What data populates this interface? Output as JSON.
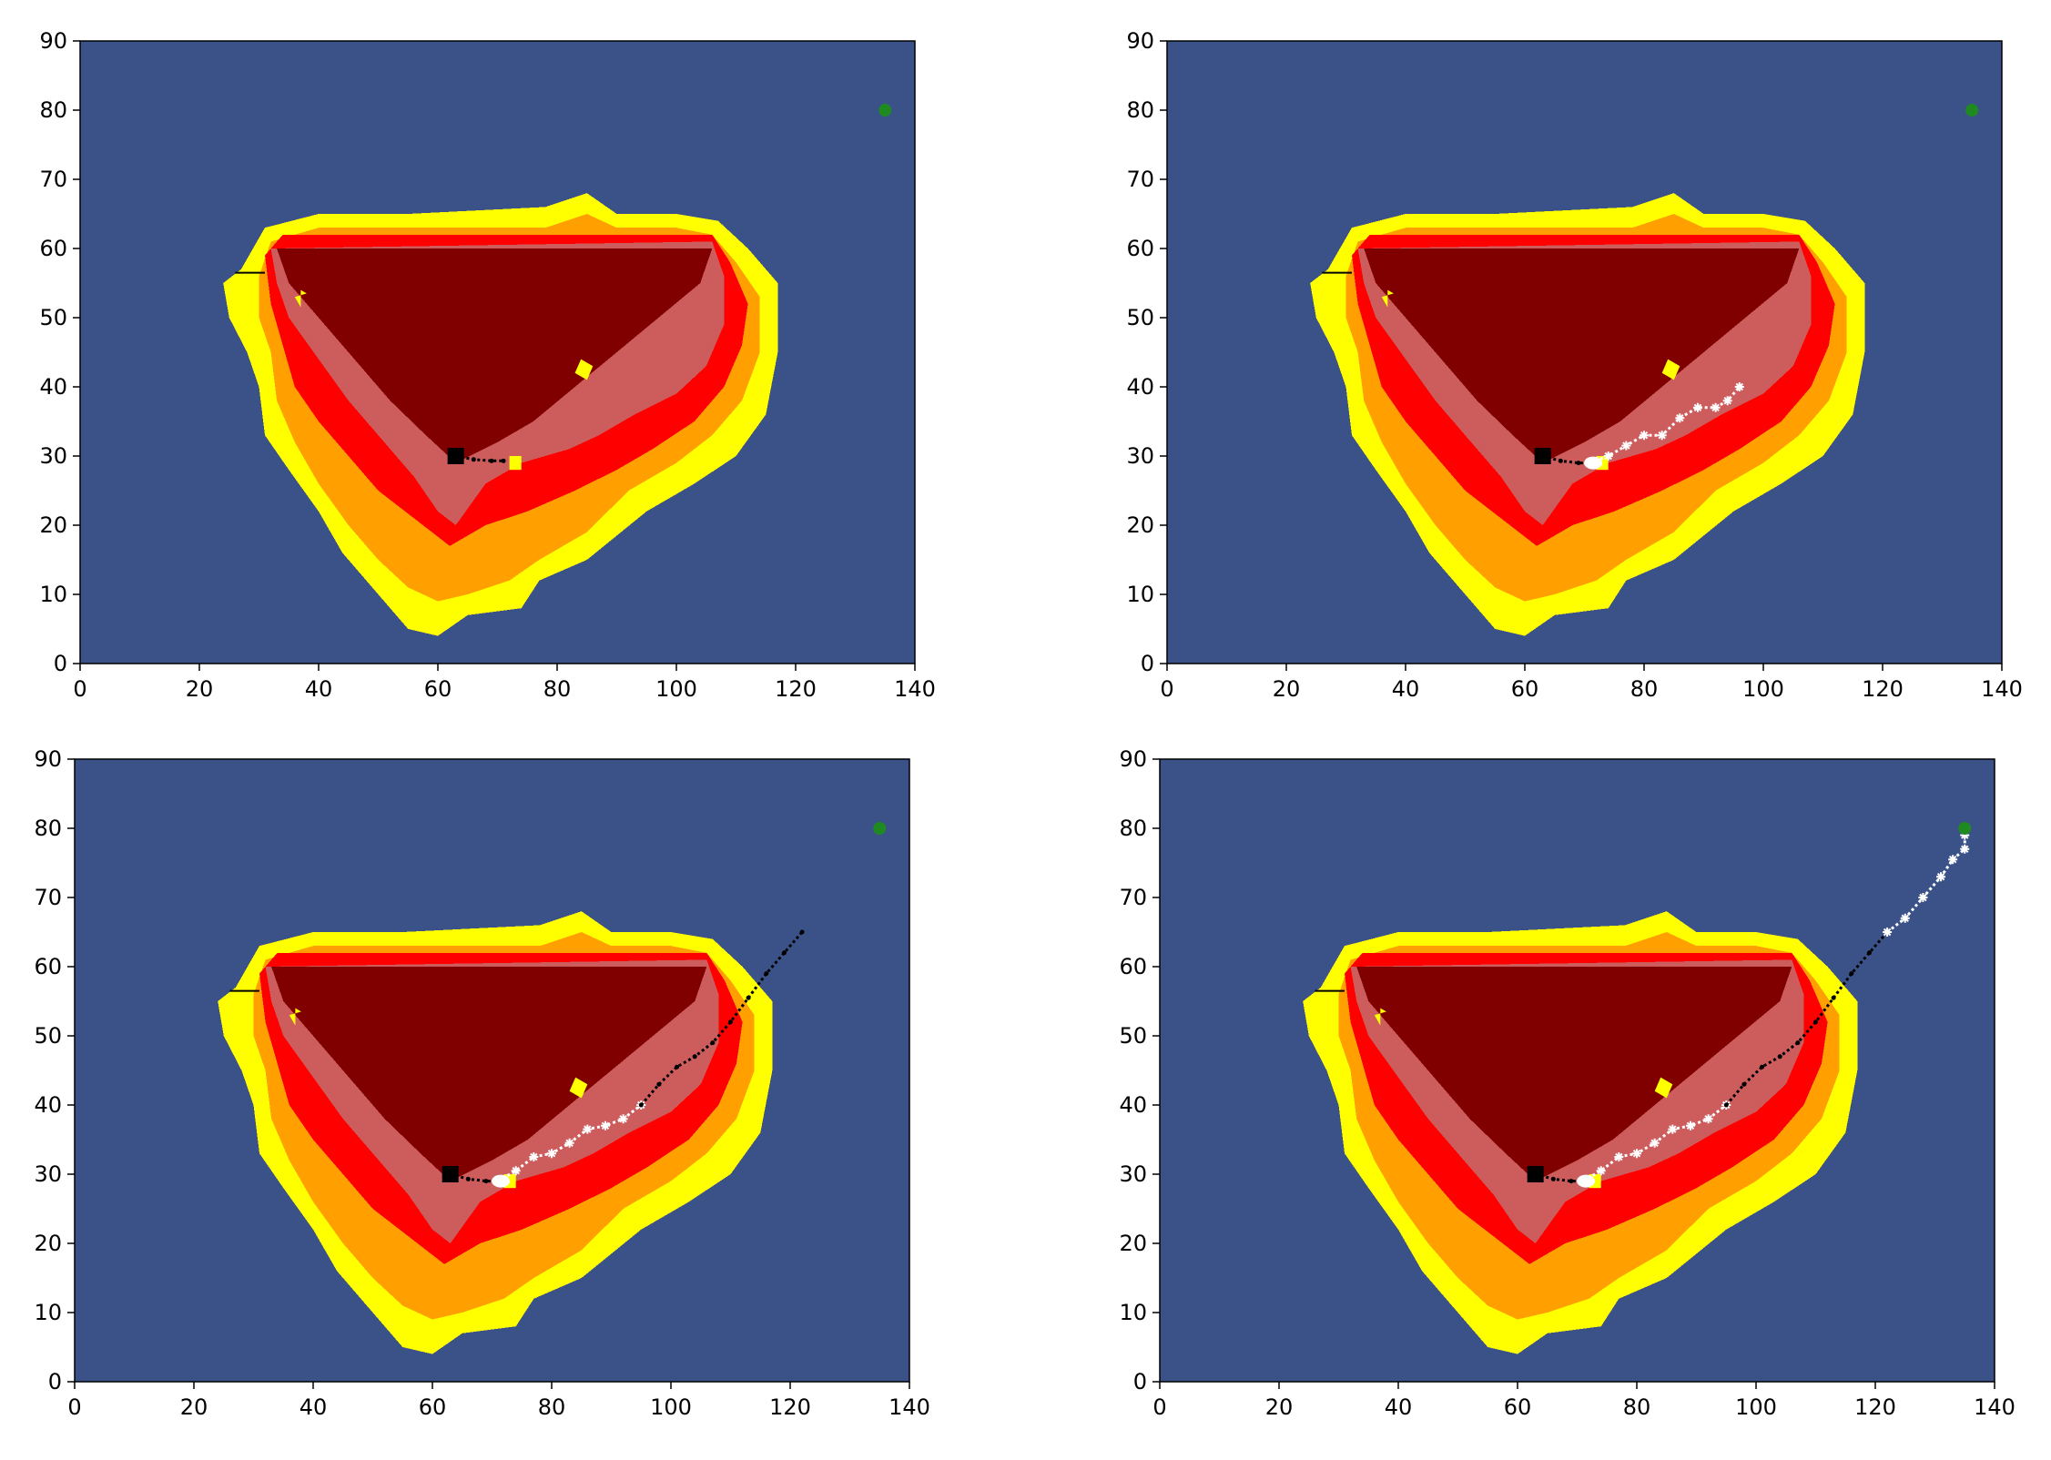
{
  "colors": {
    "background": "#3b5289",
    "zone_yellow": "#ffff00",
    "zone_orange": "#ffa000",
    "zone_red": "#ff0000",
    "zone_rose": "#cd5c5c",
    "zone_maroon": "#800000",
    "path_done": "#000000",
    "path_planned": "#ffffff",
    "start_marker": "#000000",
    "goal_marker": "#1f8a1f",
    "stroke": "#000000"
  },
  "chart_data": [
    {
      "type": "heatmap",
      "panel": "top-left",
      "title": "",
      "xlabel": "",
      "ylabel": "",
      "xlim": [
        0,
        140
      ],
      "ylim": [
        0,
        90
      ],
      "xticks": [
        0,
        20,
        40,
        60,
        80,
        100,
        120,
        140
      ],
      "yticks": [
        0,
        10,
        20,
        30,
        40,
        50,
        60,
        70,
        80,
        90
      ],
      "grid": false,
      "start": [
        63,
        30
      ],
      "goal": [
        135,
        80
      ],
      "traversed_path": [
        [
          63,
          30
        ],
        [
          66,
          29.5
        ],
        [
          69,
          29.3
        ],
        [
          71,
          29.3
        ]
      ],
      "planned_path": []
    },
    {
      "type": "heatmap",
      "panel": "top-right",
      "title": "",
      "xlabel": "",
      "ylabel": "",
      "xlim": [
        0,
        140
      ],
      "ylim": [
        0,
        90
      ],
      "xticks": [
        0,
        20,
        40,
        60,
        80,
        100,
        120,
        140
      ],
      "yticks": [
        0,
        10,
        20,
        30,
        40,
        50,
        60,
        70,
        80,
        90
      ],
      "grid": false,
      "start": [
        63,
        30
      ],
      "goal": [
        135,
        80
      ],
      "traversed_path": [
        [
          63,
          30
        ],
        [
          66,
          29.3
        ],
        [
          69,
          29
        ],
        [
          71,
          29
        ]
      ],
      "planned_path": [
        [
          71,
          29
        ],
        [
          74,
          30
        ],
        [
          77,
          31.5
        ],
        [
          80,
          33
        ],
        [
          83,
          33
        ],
        [
          86,
          35.5
        ],
        [
          89,
          37
        ],
        [
          92,
          37
        ],
        [
          94,
          38
        ],
        [
          96,
          40
        ]
      ]
    },
    {
      "type": "heatmap",
      "panel": "bottom-left",
      "title": "",
      "xlabel": "",
      "ylabel": "",
      "xlim": [
        0,
        140
      ],
      "ylim": [
        0,
        90
      ],
      "xticks": [
        0,
        20,
        40,
        60,
        80,
        100,
        120,
        140
      ],
      "yticks": [
        0,
        10,
        20,
        30,
        40,
        50,
        60,
        70,
        80,
        90
      ],
      "grid": false,
      "start": [
        63,
        30
      ],
      "goal": [
        135,
        80
      ],
      "traversed_path": [
        [
          63,
          30
        ],
        [
          66,
          29.3
        ],
        [
          69,
          29
        ],
        [
          71,
          29
        ]
      ],
      "planned_path": [
        [
          71,
          29
        ],
        [
          74,
          30.5
        ],
        [
          77,
          32.5
        ],
        [
          80,
          33
        ],
        [
          83,
          34.5
        ],
        [
          86,
          36.5
        ],
        [
          89,
          37
        ],
        [
          92,
          38
        ],
        [
          95,
          40
        ]
      ],
      "projected_path": [
        [
          95,
          40
        ],
        [
          98,
          43
        ],
        [
          101,
          45.5
        ],
        [
          104,
          47
        ],
        [
          107,
          49
        ],
        [
          110,
          52
        ],
        [
          113,
          55.5
        ],
        [
          116,
          59
        ],
        [
          119,
          62
        ],
        [
          122,
          65
        ]
      ]
    },
    {
      "type": "heatmap",
      "panel": "bottom-right",
      "title": "",
      "xlabel": "",
      "ylabel": "",
      "xlim": [
        0,
        140
      ],
      "ylim": [
        0,
        90
      ],
      "xticks": [
        0,
        20,
        40,
        60,
        80,
        100,
        120,
        140
      ],
      "yticks": [
        0,
        10,
        20,
        30,
        40,
        50,
        60,
        70,
        80,
        90
      ],
      "grid": false,
      "start": [
        63,
        30
      ],
      "goal": [
        135,
        80
      ],
      "traversed_path": [
        [
          63,
          30
        ],
        [
          66,
          29.3
        ],
        [
          69,
          29
        ],
        [
          71,
          29
        ]
      ],
      "planned_path": [
        [
          71,
          29
        ],
        [
          74,
          30.5
        ],
        [
          77,
          32.5
        ],
        [
          80,
          33
        ],
        [
          83,
          34.5
        ],
        [
          86,
          36.5
        ],
        [
          89,
          37
        ],
        [
          92,
          38
        ],
        [
          95,
          40
        ]
      ],
      "projected_path": [
        [
          95,
          40
        ],
        [
          98,
          43
        ],
        [
          101,
          45.5
        ],
        [
          104,
          47
        ],
        [
          107,
          49
        ],
        [
          110,
          52
        ],
        [
          113,
          55.5
        ],
        [
          116,
          59
        ],
        [
          119,
          62
        ],
        [
          122,
          65
        ]
      ],
      "final_path": [
        [
          122,
          65
        ],
        [
          125,
          67
        ],
        [
          128,
          70
        ],
        [
          131,
          73
        ],
        [
          133,
          75.5
        ],
        [
          135,
          77
        ],
        [
          135,
          79
        ]
      ]
    }
  ],
  "hazard_zones": [
    {
      "name": "yellow",
      "points": [
        [
          27,
          57
        ],
        [
          31,
          63
        ],
        [
          40,
          65
        ],
        [
          55,
          65
        ],
        [
          78,
          66
        ],
        [
          85,
          68
        ],
        [
          90,
          65
        ],
        [
          100,
          65
        ],
        [
          107,
          64
        ],
        [
          112,
          60
        ],
        [
          117,
          55
        ],
        [
          117,
          45
        ],
        [
          115,
          36
        ],
        [
          110,
          30
        ],
        [
          103,
          26
        ],
        [
          95,
          22
        ],
        [
          85,
          15
        ],
        [
          77,
          12
        ],
        [
          74,
          8
        ],
        [
          65,
          7
        ],
        [
          60,
          4
        ],
        [
          55,
          5
        ],
        [
          50,
          10
        ],
        [
          44,
          16
        ],
        [
          40,
          22
        ],
        [
          35,
          28
        ],
        [
          31,
          33
        ],
        [
          30,
          40
        ],
        [
          28,
          45
        ],
        [
          25,
          50
        ],
        [
          24,
          55
        ]
      ]
    },
    {
      "name": "orange",
      "points": [
        [
          30,
          56
        ],
        [
          32,
          61
        ],
        [
          40,
          63
        ],
        [
          55,
          63
        ],
        [
          78,
          63
        ],
        [
          85,
          65
        ],
        [
          90,
          63
        ],
        [
          100,
          63
        ],
        [
          106,
          62
        ],
        [
          110,
          58
        ],
        [
          114,
          53
        ],
        [
          114,
          45
        ],
        [
          111,
          38
        ],
        [
          106,
          33
        ],
        [
          100,
          29
        ],
        [
          92,
          25
        ],
        [
          85,
          19
        ],
        [
          77,
          15
        ],
        [
          72,
          12
        ],
        [
          65,
          10
        ],
        [
          60,
          9
        ],
        [
          55,
          11
        ],
        [
          50,
          15
        ],
        [
          45,
          20
        ],
        [
          40,
          26
        ],
        [
          36,
          32
        ],
        [
          33,
          38
        ],
        [
          32,
          45
        ],
        [
          30,
          50
        ]
      ]
    },
    {
      "name": "red",
      "points": [
        [
          31,
          59
        ],
        [
          34,
          62
        ],
        [
          55,
          62
        ],
        [
          80,
          62
        ],
        [
          100,
          62
        ],
        [
          106,
          62
        ],
        [
          109,
          58
        ],
        [
          112,
          52
        ],
        [
          111,
          46
        ],
        [
          108,
          40
        ],
        [
          103,
          35
        ],
        [
          96,
          31
        ],
        [
          90,
          28
        ],
        [
          83,
          25
        ],
        [
          75,
          22
        ],
        [
          68,
          20
        ],
        [
          62,
          17
        ],
        [
          56,
          21
        ],
        [
          50,
          25
        ],
        [
          45,
          30
        ],
        [
          40,
          35
        ],
        [
          36,
          40
        ],
        [
          34,
          46
        ],
        [
          32,
          52
        ]
      ]
    },
    {
      "name": "rose",
      "points": [
        [
          32,
          60
        ],
        [
          106,
          61
        ],
        [
          108,
          56
        ],
        [
          108,
          49
        ],
        [
          105,
          43
        ],
        [
          100,
          39
        ],
        [
          93,
          36
        ],
        [
          87,
          33
        ],
        [
          82,
          31
        ],
        [
          74,
          29
        ],
        [
          68,
          26
        ],
        [
          63,
          20
        ],
        [
          60,
          22
        ],
        [
          56,
          27
        ],
        [
          51,
          32
        ],
        [
          45,
          38
        ],
        [
          40,
          44
        ],
        [
          35,
          50
        ],
        [
          33,
          55
        ]
      ]
    },
    {
      "name": "maroon",
      "points": [
        [
          33,
          60
        ],
        [
          106,
          60
        ],
        [
          104,
          55
        ],
        [
          97,
          50
        ],
        [
          90,
          45
        ],
        [
          83,
          40
        ],
        [
          76,
          35
        ],
        [
          70,
          32
        ],
        [
          63,
          29
        ],
        [
          58,
          33
        ],
        [
          52,
          38
        ],
        [
          46,
          44
        ],
        [
          40,
          50
        ],
        [
          35,
          55
        ]
      ]
    }
  ],
  "hazard_specks": [
    {
      "zone": "yellow",
      "points": [
        [
          36,
          53
        ],
        [
          37,
          51.5
        ],
        [
          37,
          54
        ],
        [
          38,
          53.5
        ]
      ]
    },
    {
      "zone": "yellow",
      "points": [
        [
          83,
          42
        ],
        [
          85,
          41
        ],
        [
          86,
          43
        ],
        [
          84,
          44
        ]
      ]
    },
    {
      "zone": "yellow",
      "points": [
        [
          72,
          30
        ],
        [
          74,
          30
        ],
        [
          74,
          28
        ],
        [
          72,
          28
        ]
      ]
    }
  ]
}
